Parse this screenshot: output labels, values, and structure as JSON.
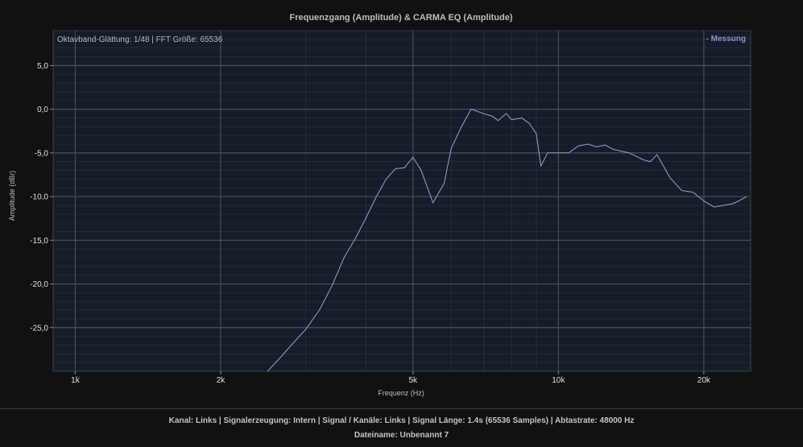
{
  "chart_data": {
    "type": "line",
    "title": "Frequenzgang (Amplitude) & CARMA EQ (Amplitude)",
    "xlabel": "Frequenz (Hz)",
    "ylabel": "Amplitude (dBr)",
    "xscale": "log",
    "xlim": [
      900,
      25000
    ],
    "ylim": [
      -30,
      9
    ],
    "grid": true,
    "legend_position": "top-right",
    "info_text": "Oktavband-Glättung: 1/48 | FFT Größe: 65536",
    "x_ticks": [
      {
        "value": 1000,
        "label": "1k"
      },
      {
        "value": 2000,
        "label": "2k"
      },
      {
        "value": 5000,
        "label": "5k"
      },
      {
        "value": 10000,
        "label": "10k"
      },
      {
        "value": 20000,
        "label": "20k"
      }
    ],
    "y_ticks": [
      {
        "value": 5,
        "label": "5,0"
      },
      {
        "value": 0,
        "label": "0,0"
      },
      {
        "value": -5,
        "label": "-5,0"
      },
      {
        "value": -10,
        "label": "-10,0"
      },
      {
        "value": -15,
        "label": "-15,0"
      },
      {
        "value": -20,
        "label": "-20,0"
      },
      {
        "value": -25,
        "label": "-25,0"
      }
    ],
    "series": [
      {
        "name": "- Messung",
        "color": "#8a96c8",
        "x": [
          2500,
          2650,
          2800,
          3000,
          3200,
          3400,
          3600,
          3800,
          4000,
          4200,
          4400,
          4600,
          4800,
          5000,
          5200,
          5500,
          5800,
          6000,
          6300,
          6600,
          7000,
          7300,
          7500,
          7800,
          8000,
          8400,
          8700,
          9000,
          9200,
          9500,
          10000,
          10500,
          11000,
          11500,
          12000,
          12500,
          13000,
          14000,
          15000,
          15500,
          16000,
          16500,
          17000,
          18000,
          19000,
          20000,
          21000,
          22000,
          23000,
          24000,
          24500
        ],
        "y": [
          -30.0,
          -28.5,
          -27.0,
          -25.2,
          -23.0,
          -20.2,
          -17.0,
          -14.8,
          -12.4,
          -10.0,
          -8.0,
          -6.8,
          -6.7,
          -5.5,
          -7.0,
          -10.7,
          -8.5,
          -4.5,
          -2.0,
          0.0,
          -0.5,
          -0.8,
          -1.3,
          -0.5,
          -1.2,
          -1.0,
          -1.6,
          -2.8,
          -6.5,
          -5.0,
          -5.0,
          -5.0,
          -4.2,
          -4.0,
          -4.3,
          -4.1,
          -4.6,
          -5.0,
          -5.8,
          -6.0,
          -5.2,
          -6.5,
          -7.8,
          -9.3,
          -9.5,
          -10.5,
          -11.2,
          -11.0,
          -10.8,
          -10.3,
          -10.0
        ]
      }
    ]
  },
  "footer": {
    "status": "Kanal: Links  |  Signalerzeugung: Intern  |  Signal / Kanäle: Links  |  Signal Länge: 1.4s (65536 Samples)  |  Abtastrate: 48000 Hz",
    "filename": "Dateiname: Unbenannt 7"
  }
}
